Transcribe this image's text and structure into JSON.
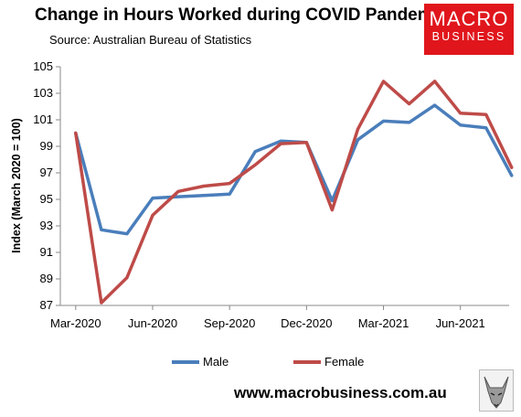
{
  "header": {
    "title": "Change in Hours Worked during COVID Pandemic",
    "subtitle": "Source: Australian Bureau of Statistics"
  },
  "logo": {
    "line1": "MACRO",
    "line2": "BUSINESS",
    "color": "#e0161c"
  },
  "footer": {
    "url": "www.macrobusiness.com.au",
    "icon": "fox-icon"
  },
  "chart_data": {
    "type": "line",
    "title": "Change in Hours Worked during COVID Pandemic",
    "ylabel": "Index (March 2020 = 100)",
    "xlabel": "",
    "ylim": [
      87,
      105
    ],
    "yticks": [
      87,
      89,
      91,
      93,
      95,
      97,
      99,
      101,
      103,
      105
    ],
    "categories": [
      "Mar-2020",
      "Apr-2020",
      "May-2020",
      "Jun-2020",
      "Jul-2020",
      "Aug-2020",
      "Sep-2020",
      "Oct-2020",
      "Nov-2020",
      "Dec-2020",
      "Jan-2021",
      "Feb-2021",
      "Mar-2021",
      "Apr-2021",
      "May-2021",
      "Jun-2021",
      "Jul-2021",
      "Aug-2021"
    ],
    "xtick_labels": [
      "Mar-2020",
      "",
      "",
      "Jun-2020",
      "",
      "",
      "Sep-2020",
      "",
      "",
      "Dec-2020",
      "",
      "",
      "Mar-2021",
      "",
      "",
      "Jun-2021",
      "",
      ""
    ],
    "grid": false,
    "legend_position": "bottom",
    "series": [
      {
        "name": "Male",
        "color": "#4a7ebb",
        "values": [
          100.0,
          92.7,
          92.4,
          95.1,
          95.2,
          95.3,
          95.4,
          98.6,
          99.4,
          99.3,
          94.9,
          99.5,
          100.9,
          100.8,
          102.1,
          100.6,
          100.4,
          96.8
        ]
      },
      {
        "name": "Female",
        "color": "#be4b48",
        "values": [
          100.0,
          87.2,
          89.1,
          93.8,
          95.6,
          96.0,
          96.2,
          97.6,
          99.2,
          99.3,
          94.2,
          100.3,
          103.9,
          102.2,
          103.9,
          101.5,
          101.4,
          97.4
        ]
      }
    ]
  }
}
